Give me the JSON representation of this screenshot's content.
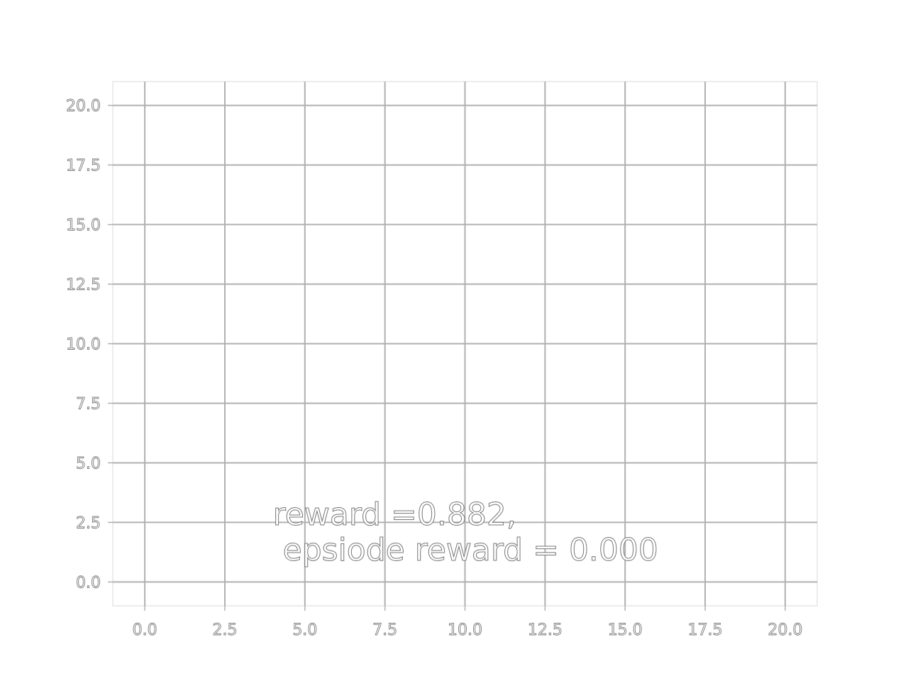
{
  "chart_data": {
    "type": "scatter",
    "title": "",
    "xlabel": "",
    "ylabel": "",
    "xlim": [
      -1.0,
      21.0
    ],
    "ylim": [
      -1.0,
      21.0
    ],
    "x_ticks": [
      0.0,
      2.5,
      5.0,
      7.5,
      10.0,
      12.5,
      15.0,
      17.5,
      20.0
    ],
    "y_ticks": [
      0.0,
      2.5,
      5.0,
      7.5,
      10.0,
      12.5,
      15.0,
      17.5,
      20.0
    ],
    "x_tick_labels": [
      "0.0",
      "2.5",
      "5.0",
      "7.5",
      "10.0",
      "12.5",
      "15.0",
      "17.5",
      "20.0"
    ],
    "y_tick_labels": [
      "0.0",
      "2.5",
      "5.0",
      "7.5",
      "10.0",
      "12.5",
      "15.0",
      "17.5",
      "20.0"
    ],
    "grid": true,
    "series": [],
    "annotation": {
      "x": 4.0,
      "y": 1.5,
      "line1": "reward =0.882,",
      "line2": " epsiode reward = 0.000"
    },
    "colors": {
      "grid": "#b0b0b0",
      "frame": "#e6e6e6",
      "text_outline": "#777777",
      "background": "#ffffff"
    }
  }
}
